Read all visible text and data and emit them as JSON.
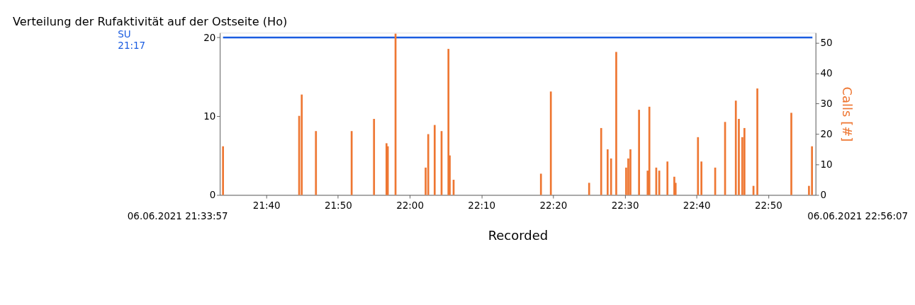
{
  "chart_data": {
    "type": "bar",
    "title": "Verteilung der Rufaktivität auf der Ostseite (Ho)",
    "xlabel": "Recorded",
    "y2label": "Calls [#]",
    "x": [
      21.566,
      21.743,
      21.749,
      21.782,
      21.865,
      21.917,
      21.946,
      21.949,
      21.967,
      22.037,
      22.043,
      22.058,
      22.074,
      22.09,
      22.093,
      22.102,
      22.305,
      22.328,
      22.417,
      22.445,
      22.46,
      22.468,
      22.48,
      22.503,
      22.508,
      22.513,
      22.533,
      22.553,
      22.557,
      22.573,
      22.58,
      22.599,
      22.615,
      22.618,
      22.67,
      22.678,
      22.71,
      22.733,
      22.758,
      22.765,
      22.773,
      22.778,
      22.799,
      22.808,
      22.887,
      22.928,
      22.935
    ],
    "series": [
      {
        "color": "#ee7733",
        "axis": "y2",
        "values": [
          16,
          26,
          33,
          21,
          21,
          25,
          17,
          16,
          53,
          9,
          20,
          23,
          21,
          48,
          13,
          5,
          7,
          34,
          4,
          22,
          15,
          12,
          47,
          9,
          12,
          15,
          28,
          8,
          29,
          9,
          8,
          11,
          6,
          4,
          19,
          11,
          9,
          24,
          31,
          25,
          19,
          22,
          3,
          35,
          27,
          3,
          16
        ]
      }
    ],
    "xlim": [
      21.566,
      22.936
    ],
    "xticks": [
      {
        "value": 21.6667,
        "label": "21:40"
      },
      {
        "value": 21.8333,
        "label": "21:50"
      },
      {
        "value": 22.0,
        "label": "22:00"
      },
      {
        "value": 22.1667,
        "label": "22:10"
      },
      {
        "value": 22.3333,
        "label": "22:20"
      },
      {
        "value": 22.5,
        "label": "22:30"
      },
      {
        "value": 22.6667,
        "label": "22:40"
      },
      {
        "value": 22.8333,
        "label": "22:50"
      }
    ],
    "ylim": [
      0,
      20.6
    ],
    "yticks": [
      0,
      10,
      20
    ],
    "y2lim": [
      0,
      53.3
    ],
    "y2ticks": [
      0,
      10,
      20,
      30,
      40,
      50
    ],
    "ref_lines": [
      {
        "axis": "y",
        "value": 20,
        "color": "#1a5ce0"
      }
    ],
    "annotations": [
      "SU 21:17",
      "06.06.2021 21:33:57",
      "06.06.2021 22:56:07"
    ],
    "grid": false
  }
}
